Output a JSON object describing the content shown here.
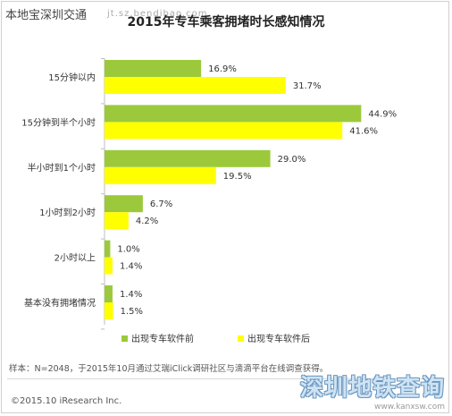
{
  "header": {
    "site_name": "本地宝深圳交通",
    "site_url": "jt.sz.bendibao.com"
  },
  "colors": {
    "series_before": "#9cc93b",
    "series_after": "#ffff00",
    "axis": "#bfbfbf",
    "text": "#333333",
    "watermark": "#cfe3f3"
  },
  "chart_data": {
    "type": "bar",
    "orientation": "horizontal",
    "title": "2015年专车乘客拥堵时长感知情况",
    "categories": [
      "15分钟以内",
      "15分钟到半个小时",
      "半小时到1个小时",
      "1小时到2小时",
      "2小时以上",
      "基本没有拥堵情况"
    ],
    "series": [
      {
        "name": "出现专车软件前",
        "values": [
          16.9,
          44.9,
          29.0,
          6.7,
          1.0,
          1.4
        ],
        "labels": [
          "16.9%",
          "44.9%",
          "29.0%",
          "6.7%",
          "1.0%",
          "1.4%"
        ]
      },
      {
        "name": "出现专车软件后",
        "values": [
          31.7,
          41.6,
          19.5,
          4.2,
          1.4,
          1.5
        ],
        "labels": [
          "31.7%",
          "41.6%",
          "19.5%",
          "4.2%",
          "1.4%",
          "1.5%"
        ]
      }
    ],
    "unit": "%",
    "xlim": [
      0,
      50
    ],
    "grid": false,
    "legend": "bottom"
  },
  "footnote": "样本：N=2048，于2015年10月通过艾瑞iClick调研社区与滴滴平台在线调查获得。",
  "copyright": "©2015.10 iResearch Inc.",
  "watermark": {
    "title": "深圳地铁查询",
    "url": "www.kanxsw.com"
  }
}
